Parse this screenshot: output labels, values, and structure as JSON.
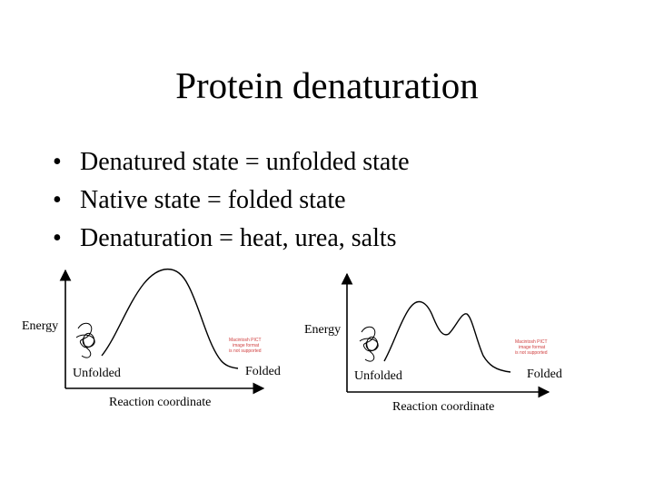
{
  "slide": {
    "title": "Protein denaturation",
    "bullets": [
      "Denatured state = unfolded state",
      "Native state = folded state",
      "Denaturation = heat, urea, salts"
    ],
    "bullet_glyph": "•"
  },
  "diagrams": [
    {
      "y_label": "Energy",
      "x_label": "Reaction coordinate",
      "left_label": "Unfolded",
      "right_label": "Folded",
      "barrier": "single-peak",
      "placeholder_lines": [
        "Macintosh PICT",
        "image format",
        "is not supported"
      ]
    },
    {
      "y_label": "Energy",
      "x_label": "Reaction coordinate",
      "left_label": "Unfolded",
      "right_label": "Folded",
      "barrier": "double-peak",
      "placeholder_lines": [
        "Macintosh PICT",
        "image format",
        "is not supported"
      ]
    }
  ],
  "colors": {
    "ink": "#000000",
    "placeholder": "#d04040"
  }
}
